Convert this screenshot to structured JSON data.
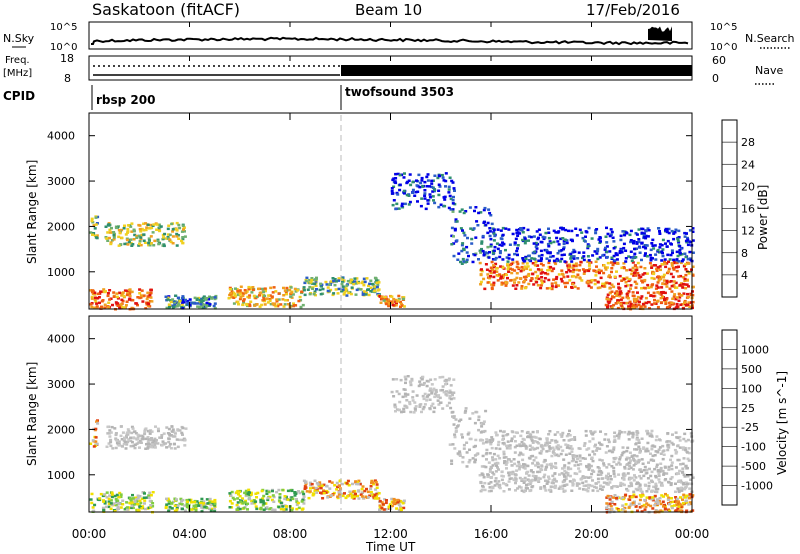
{
  "header": {
    "site": "Saskatoon (fitACF)",
    "beam": "Beam 10",
    "date": "17/Feb/2016"
  },
  "strips": {
    "nsky_label": "N.Sky",
    "nsearch_label": "N.Search",
    "power_ticks_left": [
      "10^5",
      "10^0"
    ],
    "power_ticks_right": [
      "10^5",
      "10^0"
    ],
    "freq_label_top": "Freq.",
    "freq_label_unit": "[MHz]",
    "freq_ticks": [
      "18",
      "8"
    ],
    "nave_label": "Nave",
    "nave_ticks": [
      "60",
      "0"
    ],
    "cpid_label": "CPID",
    "cpid_modes": [
      {
        "name": "rbsp 200",
        "start_h": 0
      },
      {
        "name": "twofsound 3503",
        "start_h": 10
      }
    ]
  },
  "axes": {
    "ylabel": "Slant Range [km]",
    "xlabel": "Time UT",
    "y_ticks": [
      "1000",
      "2000",
      "3000",
      "4000"
    ],
    "x_ticks": [
      "00:00",
      "04:00",
      "08:00",
      "12:00",
      "16:00",
      "20:00",
      "00:00"
    ]
  },
  "chart_data": [
    {
      "type": "heatmap",
      "panel": "power",
      "x_range_hours": [
        0,
        24
      ],
      "ylim": [
        180,
        4500
      ],
      "colorbar_label": "Power [dB]",
      "colorbar_ticks": [
        "4",
        "8",
        "12",
        "16",
        "20",
        "24",
        "28"
      ],
      "colormap": [
        "#0000e6",
        "#2a5cc8",
        "#2f8f6e",
        "#70b070",
        "#f0d020",
        "#f0a020",
        "#f06010",
        "#e01010"
      ],
      "colorbar_range": [
        0,
        32
      ],
      "regions": [
        {
          "t0": 0.0,
          "t1": 0.3,
          "r0": 1650,
          "r1": 2250,
          "lvl": 0.45
        },
        {
          "t0": 0.6,
          "t1": 3.8,
          "r0": 1600,
          "r1": 2100,
          "lvl": 0.5
        },
        {
          "t0": 0.0,
          "t1": 2.5,
          "r0": 200,
          "r1": 650,
          "lvl": 0.8
        },
        {
          "t0": 3.0,
          "t1": 5.0,
          "r0": 220,
          "r1": 500,
          "lvl": 0.3
        },
        {
          "t0": 5.5,
          "t1": 8.5,
          "r0": 250,
          "r1": 700,
          "lvl": 0.65
        },
        {
          "t0": 8.5,
          "t1": 11.5,
          "r0": 500,
          "r1": 900,
          "lvl": 0.4
        },
        {
          "t0": 11.5,
          "t1": 12.5,
          "r0": 250,
          "r1": 500,
          "lvl": 0.7
        },
        {
          "t0": 12.0,
          "t1": 14.5,
          "r0": 2400,
          "r1": 3200,
          "lvl": 0.1
        },
        {
          "t0": 14.3,
          "t1": 16.0,
          "r0": 1200,
          "r1": 2500,
          "lvl": 0.2
        },
        {
          "t0": 15.5,
          "t1": 24.0,
          "r0": 650,
          "r1": 1250,
          "lvl": 0.8
        },
        {
          "t0": 16.0,
          "t1": 24.0,
          "r0": 1250,
          "r1": 2000,
          "lvl": 0.1
        },
        {
          "t0": 20.5,
          "t1": 24.0,
          "r0": 200,
          "r1": 600,
          "lvl": 0.85
        }
      ]
    },
    {
      "type": "heatmap",
      "panel": "velocity",
      "x_range_hours": [
        0,
        24
      ],
      "ylim": [
        180,
        4500
      ],
      "colorbar_label": "Velocity [m s^-1]",
      "colorbar_ticks": [
        "1000",
        "500",
        "100",
        "25",
        "-25",
        "-100",
        "-500",
        "-1000"
      ],
      "colormap": [
        "#1030b0",
        "#2c7a8c",
        "#2f9a50",
        "#80cc40",
        "#bebebe",
        "#f0e000",
        "#f09020",
        "#e04010",
        "#e00000"
      ],
      "colorbar_range": [
        -1200,
        1200
      ],
      "regions": [
        {
          "t0": 0.0,
          "t1": 0.3,
          "r0": 1650,
          "r1": 2250,
          "cls": "orange"
        },
        {
          "t0": 0.6,
          "t1": 3.8,
          "r0": 1600,
          "r1": 2100,
          "cls": "grey"
        },
        {
          "t0": 0.0,
          "t1": 2.5,
          "r0": 200,
          "r1": 650,
          "cls": "green"
        },
        {
          "t0": 3.0,
          "t1": 5.0,
          "r0": 220,
          "r1": 500,
          "cls": "green"
        },
        {
          "t0": 5.5,
          "t1": 8.5,
          "r0": 250,
          "r1": 700,
          "cls": "green"
        },
        {
          "t0": 8.5,
          "t1": 11.5,
          "r0": 500,
          "r1": 900,
          "cls": "orange"
        },
        {
          "t0": 11.5,
          "t1": 12.5,
          "r0": 250,
          "r1": 500,
          "cls": "orange"
        },
        {
          "t0": 12.0,
          "t1": 14.5,
          "r0": 2400,
          "r1": 3200,
          "cls": "grey"
        },
        {
          "t0": 14.3,
          "t1": 16.0,
          "r0": 1200,
          "r1": 2500,
          "cls": "grey"
        },
        {
          "t0": 15.5,
          "t1": 24.0,
          "r0": 650,
          "r1": 1250,
          "cls": "grey"
        },
        {
          "t0": 16.0,
          "t1": 24.0,
          "r0": 1250,
          "r1": 2000,
          "cls": "grey"
        },
        {
          "t0": 20.5,
          "t1": 24.0,
          "r0": 200,
          "r1": 600,
          "cls": "orange"
        }
      ]
    }
  ]
}
